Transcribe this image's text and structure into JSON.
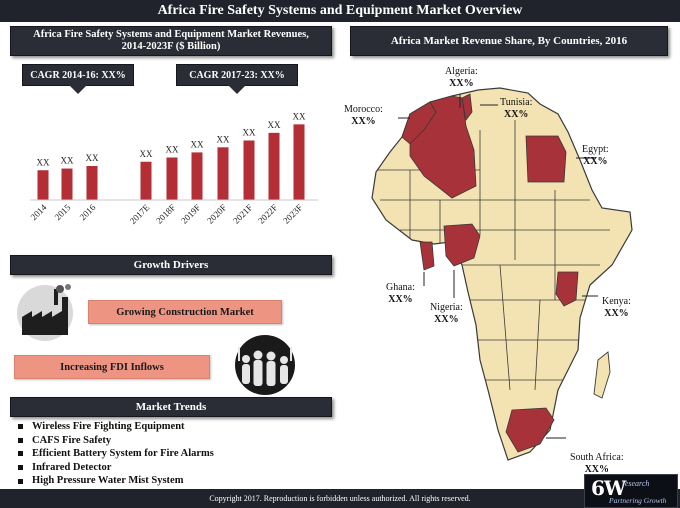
{
  "title": "Africa Fire Safety Systems and Equipment Market Overview",
  "bar_panel": {
    "heading_line1": "Africa Fire Safety Systems and Equipment Market Revenues,",
    "heading_line2": "2014-2023F ($ Billion)",
    "cagr_1": "CAGR 2014-16: XX%",
    "cagr_2": "CAGR 2017-23: XX%"
  },
  "chart_data": [
    {
      "type": "bar",
      "title": "Africa Fire Safety Systems and Equipment Market Revenues, 2014-2023F ($ Billion)",
      "categories": [
        "2014",
        "2015",
        "2016",
        "2017E",
        "2018F",
        "2019F",
        "2020F",
        "2021F",
        "2022F",
        "2023F"
      ],
      "values": [
        35,
        37,
        40,
        45,
        50,
        56,
        62,
        70,
        79,
        89
      ],
      "data_labels": [
        "XX",
        "XX",
        "XX",
        "XX",
        "XX",
        "XX",
        "XX",
        "XX",
        "XX",
        "XX"
      ],
      "bar_color": "#b32e35",
      "ylim": [
        0,
        100
      ],
      "grid": false
    }
  ],
  "map_panel": {
    "heading": "Africa Market Revenue Share, By Countries, 2016",
    "highlight_color": "#a8323a",
    "base_color": "#f3e3b3",
    "callouts": [
      {
        "name": "Algeria:",
        "value": "XX%"
      },
      {
        "name": "Tunisia:",
        "value": "XX%"
      },
      {
        "name": "Morocco:",
        "value": "XX%"
      },
      {
        "name": "Egypt:",
        "value": "XX%"
      },
      {
        "name": "Ghana:",
        "value": "XX%"
      },
      {
        "name": "Nigeria:",
        "value": "XX%"
      },
      {
        "name": "Kenya:",
        "value": "XX%"
      },
      {
        "name": "South Africa:",
        "value": "XX%"
      }
    ]
  },
  "drivers": {
    "heading": "Growth Drivers",
    "items": [
      "Growing Construction Market",
      "Increasing FDI Inflows"
    ],
    "icons": [
      "factory-icon",
      "crowd-icon"
    ]
  },
  "trends": {
    "heading": "Market Trends",
    "items": [
      "Wireless Fire Fighting Equipment",
      "CAFS Fire Safety",
      "Efficient Battery System for Fire Alarms",
      "Infrared Detector",
      "High Pressure Water Mist System"
    ]
  },
  "footer": {
    "copyright": "Copyright 2017. Reproduction is forbidden unless authorized. All rights reserved.",
    "logo_main": "6W",
    "logo_sub": "research",
    "logo_tagline": "Partnering Growth"
  }
}
